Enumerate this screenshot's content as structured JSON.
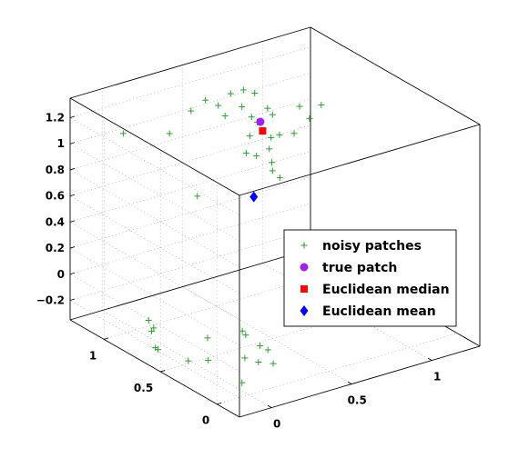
{
  "chart_data": {
    "type": "scatter",
    "dimensions": 3,
    "grid": true,
    "legend_placement": "right",
    "xlabel": "",
    "ylabel": "",
    "zlabel": "",
    "x_ticks": [
      0,
      0.5,
      1
    ],
    "x_tick_labels": [
      "0",
      "0.5",
      "1"
    ],
    "y_ticks": [
      0,
      0.5,
      1
    ],
    "y_tick_labels": [
      "0",
      "0.5",
      "1"
    ],
    "z_ticks": [
      -0.2,
      0,
      0.2,
      0.4,
      0.6,
      0.8,
      1,
      1.2
    ],
    "z_tick_labels": [
      "−0.2",
      "0",
      "0.2",
      "0.4",
      "0.6",
      "0.8",
      "1",
      "1.2"
    ],
    "xlim": [
      -0.2,
      1.3
    ],
    "ylim": [
      -0.2,
      1.3
    ],
    "zlim": [
      -0.35,
      1.35
    ],
    "series": [
      {
        "name": "noisy patches",
        "marker": "plus",
        "color": "#2ca02c",
        "points": [
          [
            -0.15,
            0.9,
            1.26
          ],
          [
            0.04,
            0.76,
            1.26
          ],
          [
            0.16,
            0.74,
            1.4
          ],
          [
            0.25,
            0.74,
            1.45
          ],
          [
            0.33,
            0.74,
            1.38
          ],
          [
            0.33,
            0.68,
            1.33
          ],
          [
            0.4,
            0.73,
            1.45
          ],
          [
            0.4,
            0.63,
            1.4
          ],
          [
            0.48,
            0.73,
            1.45
          ],
          [
            0.46,
            0.63,
            1.3
          ],
          [
            0.4,
            0.56,
            1.21
          ],
          [
            0.55,
            0.73,
            1.4
          ],
          [
            0.56,
            0.63,
            1.33
          ],
          [
            0.55,
            0.51,
            1.19
          ],
          [
            0.62,
            0.48,
            1.19
          ],
          [
            0.5,
            0.53,
            1.09
          ],
          [
            0.45,
            0.43,
            0.99
          ],
          [
            0.44,
            0.35,
            0.98
          ],
          [
            0.35,
            0.43,
            1.14
          ],
          [
            0.3,
            0.45,
            1.17
          ],
          [
            0.08,
            0.57,
            0.86
          ],
          [
            0.64,
            0.46,
            1.4
          ],
          [
            0.74,
            0.41,
            1.4
          ],
          [
            0.66,
            0.4,
            1.33
          ],
          [
            0.39,
            0.48,
            1.36
          ],
          [
            0.45,
            0.43,
            1.42
          ],
          [
            0.42,
            0.4,
            1.27
          ],
          [
            0.46,
            0.45,
            1.04
          ],
          [
            0.05,
            0.1,
            0.04
          ],
          [
            0.02,
            0.09,
            -0.31
          ],
          [
            -0.02,
            0.86,
            -0.2
          ],
          [
            -0.03,
            0.82,
            -0.26
          ],
          [
            0.04,
            0.9,
            -0.3
          ],
          [
            -0.02,
            0.8,
            -0.38
          ],
          [
            -0.06,
            0.72,
            -0.34
          ],
          [
            0.2,
            0.65,
            -0.31
          ],
          [
            0.03,
            0.58,
            -0.39
          ],
          [
            0.07,
            0.46,
            -0.34
          ],
          [
            0.2,
            0.32,
            -0.3
          ],
          [
            0.35,
            0.4,
            -0.3
          ],
          [
            0.4,
            0.4,
            -0.35
          ],
          [
            0.32,
            0.37,
            -0.4
          ],
          [
            0.37,
            0.31,
            -0.4
          ],
          [
            0.29,
            0.47,
            -0.2
          ]
        ]
      },
      {
        "name": "true patch",
        "marker": "circle",
        "color": "#a020f0",
        "points": [
          [
            0.48,
            0.58,
            1.28
          ]
        ]
      },
      {
        "name": "Euclidean median",
        "marker": "square",
        "color": "#ff0000",
        "points": [
          [
            0.48,
            0.56,
            1.22
          ]
        ]
      },
      {
        "name": "Euclidean mean",
        "marker": "diamond",
        "color": "#0000ff",
        "points": [
          [
            0.27,
            0.34,
            0.9
          ]
        ]
      }
    ]
  }
}
